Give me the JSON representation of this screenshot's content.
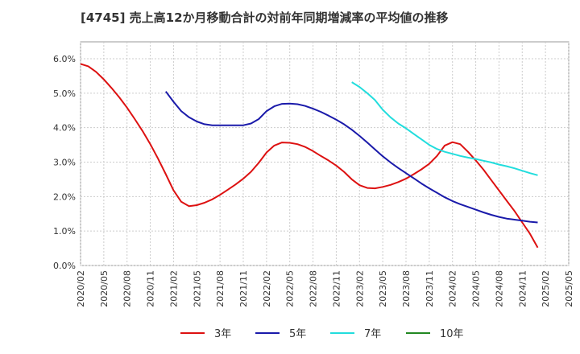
{
  "chart_data": {
    "type": "line",
    "title": "[4745]  売上高12か月移動合計の対前年同期増減率の平均値の推移",
    "xlabel": "",
    "ylabel": "",
    "ylim": [
      0,
      6.0
    ],
    "y_ticks": [
      "0.0%",
      "1.0%",
      "2.0%",
      "3.0%",
      "4.0%",
      "5.0%",
      "6.0%"
    ],
    "x_tick_labels": [
      "2020/02",
      "2020/05",
      "2020/08",
      "2020/11",
      "2021/02",
      "2021/05",
      "2021/08",
      "2021/11",
      "2022/02",
      "2022/05",
      "2022/08",
      "2022/11",
      "2023/02",
      "2023/05",
      "2023/08",
      "2023/11",
      "2024/02",
      "2024/05",
      "2024/08",
      "2024/11",
      "2025/02",
      "2025/05"
    ],
    "grid": true,
    "legend_position": "bottom",
    "series": [
      {
        "name": "3年",
        "color": "#dd1111",
        "points": [
          [
            "2020/02",
            5.85
          ],
          [
            "2020/03",
            5.78
          ],
          [
            "2020/04",
            5.62
          ],
          [
            "2020/05",
            5.4
          ],
          [
            "2020/06",
            5.15
          ],
          [
            "2020/07",
            4.88
          ],
          [
            "2020/08",
            4.58
          ],
          [
            "2020/09",
            4.25
          ],
          [
            "2020/10",
            3.9
          ],
          [
            "2020/11",
            3.52
          ],
          [
            "2020/12",
            3.1
          ],
          [
            "2021/01",
            2.65
          ],
          [
            "2021/02",
            2.18
          ],
          [
            "2021/03",
            1.85
          ],
          [
            "2021/04",
            1.72
          ],
          [
            "2021/05",
            1.75
          ],
          [
            "2021/06",
            1.82
          ],
          [
            "2021/07",
            1.92
          ],
          [
            "2021/08",
            2.05
          ],
          [
            "2021/09",
            2.2
          ],
          [
            "2021/10",
            2.35
          ],
          [
            "2021/11",
            2.52
          ],
          [
            "2021/12",
            2.72
          ],
          [
            "2022/01",
            2.98
          ],
          [
            "2022/02",
            3.28
          ],
          [
            "2022/03",
            3.48
          ],
          [
            "2022/04",
            3.57
          ],
          [
            "2022/05",
            3.56
          ],
          [
            "2022/06",
            3.52
          ],
          [
            "2022/07",
            3.44
          ],
          [
            "2022/08",
            3.32
          ],
          [
            "2022/09",
            3.18
          ],
          [
            "2022/10",
            3.05
          ],
          [
            "2022/11",
            2.9
          ],
          [
            "2022/12",
            2.72
          ],
          [
            "2023/01",
            2.5
          ],
          [
            "2023/02",
            2.33
          ],
          [
            "2023/03",
            2.25
          ],
          [
            "2023/04",
            2.24
          ],
          [
            "2023/05",
            2.28
          ],
          [
            "2023/06",
            2.34
          ],
          [
            "2023/07",
            2.42
          ],
          [
            "2023/08",
            2.52
          ],
          [
            "2023/09",
            2.65
          ],
          [
            "2023/10",
            2.79
          ],
          [
            "2023/11",
            2.95
          ],
          [
            "2023/12",
            3.18
          ],
          [
            "2024/01",
            3.48
          ],
          [
            "2024/02",
            3.58
          ],
          [
            "2024/03",
            3.52
          ],
          [
            "2024/04",
            3.3
          ],
          [
            "2024/05",
            3.05
          ],
          [
            "2024/06",
            2.78
          ],
          [
            "2024/07",
            2.48
          ],
          [
            "2024/08",
            2.18
          ],
          [
            "2024/09",
            1.88
          ],
          [
            "2024/10",
            1.58
          ],
          [
            "2024/11",
            1.25
          ],
          [
            "2024/12",
            0.92
          ],
          [
            "2025/01",
            0.52
          ]
        ]
      },
      {
        "name": "5年",
        "color": "#1a1aaa",
        "points": [
          [
            "2021/01",
            5.05
          ],
          [
            "2021/02",
            4.75
          ],
          [
            "2021/03",
            4.48
          ],
          [
            "2021/04",
            4.3
          ],
          [
            "2021/05",
            4.18
          ],
          [
            "2021/06",
            4.1
          ],
          [
            "2021/07",
            4.07
          ],
          [
            "2021/08",
            4.07
          ],
          [
            "2021/09",
            4.07
          ],
          [
            "2021/10",
            4.07
          ],
          [
            "2021/11",
            4.07
          ],
          [
            "2021/12",
            4.12
          ],
          [
            "2022/01",
            4.25
          ],
          [
            "2022/02",
            4.48
          ],
          [
            "2022/03",
            4.62
          ],
          [
            "2022/04",
            4.69
          ],
          [
            "2022/05",
            4.7
          ],
          [
            "2022/06",
            4.68
          ],
          [
            "2022/07",
            4.63
          ],
          [
            "2022/08",
            4.55
          ],
          [
            "2022/09",
            4.46
          ],
          [
            "2022/10",
            4.35
          ],
          [
            "2022/11",
            4.23
          ],
          [
            "2022/12",
            4.1
          ],
          [
            "2023/01",
            3.94
          ],
          [
            "2023/02",
            3.76
          ],
          [
            "2023/03",
            3.57
          ],
          [
            "2023/04",
            3.37
          ],
          [
            "2023/05",
            3.17
          ],
          [
            "2023/06",
            2.99
          ],
          [
            "2023/07",
            2.83
          ],
          [
            "2023/08",
            2.68
          ],
          [
            "2023/09",
            2.53
          ],
          [
            "2023/10",
            2.38
          ],
          [
            "2023/11",
            2.24
          ],
          [
            "2023/12",
            2.11
          ],
          [
            "2024/01",
            1.98
          ],
          [
            "2024/02",
            1.87
          ],
          [
            "2024/03",
            1.78
          ],
          [
            "2024/04",
            1.7
          ],
          [
            "2024/05",
            1.62
          ],
          [
            "2024/06",
            1.54
          ],
          [
            "2024/07",
            1.47
          ],
          [
            "2024/08",
            1.41
          ],
          [
            "2024/09",
            1.36
          ],
          [
            "2024/10",
            1.33
          ],
          [
            "2024/11",
            1.3
          ],
          [
            "2024/12",
            1.27
          ],
          [
            "2025/01",
            1.25
          ]
        ]
      },
      {
        "name": "7年",
        "color": "#22dddd",
        "points": [
          [
            "2023/01",
            5.32
          ],
          [
            "2023/02",
            5.18
          ],
          [
            "2023/03",
            5.0
          ],
          [
            "2023/04",
            4.8
          ],
          [
            "2023/05",
            4.52
          ],
          [
            "2023/06",
            4.3
          ],
          [
            "2023/07",
            4.12
          ],
          [
            "2023/08",
            3.98
          ],
          [
            "2023/09",
            3.82
          ],
          [
            "2023/10",
            3.66
          ],
          [
            "2023/11",
            3.5
          ],
          [
            "2023/12",
            3.38
          ],
          [
            "2024/01",
            3.3
          ],
          [
            "2024/02",
            3.24
          ],
          [
            "2024/03",
            3.18
          ],
          [
            "2024/04",
            3.13
          ],
          [
            "2024/05",
            3.09
          ],
          [
            "2024/06",
            3.04
          ],
          [
            "2024/07",
            2.99
          ],
          [
            "2024/08",
            2.93
          ],
          [
            "2024/09",
            2.88
          ],
          [
            "2024/10",
            2.82
          ],
          [
            "2024/11",
            2.75
          ],
          [
            "2024/12",
            2.68
          ],
          [
            "2025/01",
            2.62
          ]
        ]
      },
      {
        "name": "10年",
        "color": "#228822",
        "points": []
      }
    ]
  }
}
